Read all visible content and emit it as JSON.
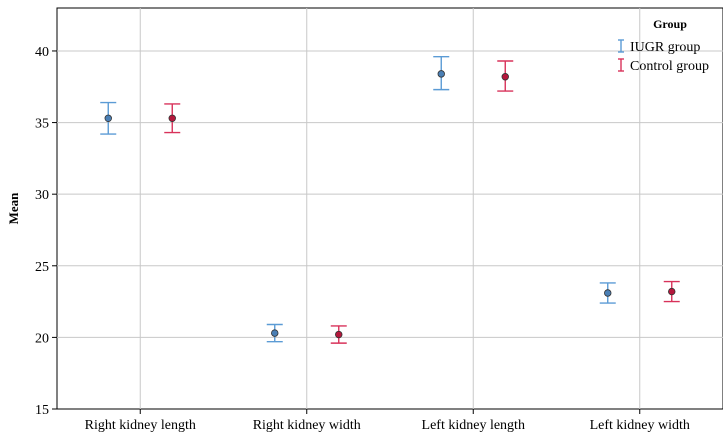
{
  "chart_data": {
    "type": "scatter",
    "subtype": "error-bar",
    "title": "",
    "xlabel": "",
    "ylabel": "Mean",
    "categories": [
      "Right kidney length",
      "Right kidney width",
      "Left kidney length",
      "Left kidney width"
    ],
    "ylim": [
      15,
      43
    ],
    "yticks": [
      15,
      20,
      25,
      30,
      35,
      40
    ],
    "grid": true,
    "legend": {
      "title": "Group",
      "position": "top-right"
    },
    "series": [
      {
        "name": "IUGR group",
        "color": "#5b9bd5",
        "marker_color": "#4a7fb5",
        "mean": [
          35.3,
          20.3,
          38.4,
          23.1
        ],
        "lower": [
          34.2,
          19.7,
          37.3,
          22.4
        ],
        "upper": [
          36.4,
          20.9,
          39.6,
          23.8
        ]
      },
      {
        "name": "Control group",
        "color": "#d8325a",
        "marker_color": "#b5173c",
        "mean": [
          35.3,
          20.2,
          38.2,
          23.2
        ],
        "lower": [
          34.3,
          19.6,
          37.2,
          22.5
        ],
        "upper": [
          36.3,
          20.8,
          39.3,
          23.9
        ]
      }
    ]
  }
}
